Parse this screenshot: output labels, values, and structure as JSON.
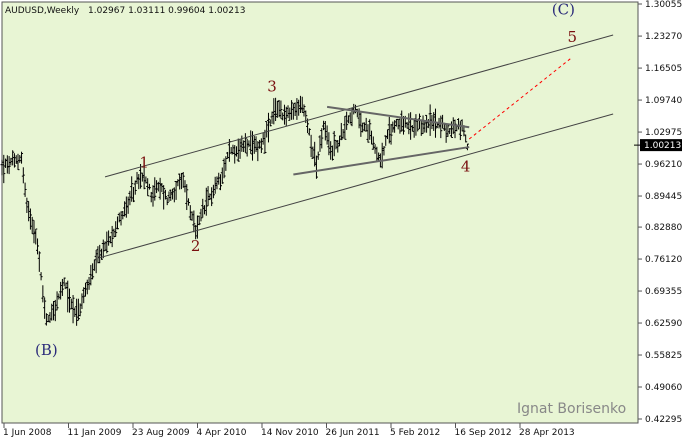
{
  "chart_data": {
    "type": "ohlc",
    "title": "AUDUSD,Weekly",
    "ohlc": "1.02967 1.03111 0.99604 1.00213",
    "watermark": "Ignat Borisenko",
    "x_tick_labels": [
      "1 Jun 2008",
      "11 Jan 2009",
      "23 Aug 2009",
      "4 Apr 2010",
      "14 Nov 2010",
      "26 Jun 2011",
      "5 Feb 2012",
      "16 Sep 2012",
      "28 Apr 2013"
    ],
    "y_tick_labels": [
      "1.30055",
      "1.23270",
      "1.16505",
      "1.09740",
      "1.02975",
      "0.96210",
      "0.89445",
      "0.82880",
      "0.76120",
      "0.69355",
      "0.62590",
      "0.55825",
      "0.49060",
      "0.42295"
    ],
    "ylim": [
      0.42295,
      1.30055
    ],
    "current_price": "1.00213",
    "colors": {
      "background": "#e8f5d4",
      "bars": "#000000",
      "channel": "#444444",
      "triangle": "#666666",
      "projection": "#ff0000",
      "wave_labels": "#7a1010",
      "corrective_labels": "#2b2b7a",
      "price_marker": "#000000",
      "watermark": "#888888"
    },
    "wave_labels": [
      {
        "label": "1",
        "date": "2009-11-15",
        "price": 0.955
      },
      {
        "label": "2",
        "date": "2010-06-06",
        "price": 0.778
      },
      {
        "label": "3",
        "date": "2011-04-03",
        "price": 1.115
      },
      {
        "label": "4",
        "date": "2013-05-05",
        "price": 0.946
      },
      {
        "label": "5",
        "date": "2014-06-29",
        "price": 1.22
      },
      {
        "label": "(B)",
        "date": "2008-10-26",
        "price": 0.558
      },
      {
        "label": "(C)",
        "date": "2014-05-25",
        "price": 1.278
      }
    ],
    "lines": [
      {
        "name": "channel-upper",
        "from": {
          "date": "2009-06-14",
          "price": 0.935
        },
        "to": {
          "date": "2014-12-07",
          "price": 1.235
        }
      },
      {
        "name": "channel-lower",
        "from": {
          "date": "2009-05-17",
          "price": 0.763
        },
        "to": {
          "date": "2014-12-07",
          "price": 1.068
        }
      },
      {
        "name": "triangle-upper",
        "from": {
          "date": "2011-11-06",
          "price": 1.083
        },
        "to": {
          "date": "2013-05-19",
          "price": 1.04
        }
      },
      {
        "name": "triangle-lower",
        "from": {
          "date": "2011-06-26",
          "price": 0.94
        },
        "to": {
          "date": "2013-05-19",
          "price": 0.998
        }
      },
      {
        "name": "projection",
        "from": {
          "date": "2013-05-19",
          "price": 1.015
        },
        "to": {
          "date": "2014-06-29",
          "price": 1.188
        }
      }
    ],
    "series": [
      {
        "date": "2008-05-04",
        "price": 0.955
      },
      {
        "date": "2008-07-20",
        "price": 0.975
      },
      {
        "date": "2008-08-10",
        "price": 0.875
      },
      {
        "date": "2008-09-14",
        "price": 0.815
      },
      {
        "date": "2008-10-12",
        "price": 0.69
      },
      {
        "date": "2008-10-26",
        "price": 0.63
      },
      {
        "date": "2008-11-30",
        "price": 0.66
      },
      {
        "date": "2009-01-04",
        "price": 0.71
      },
      {
        "date": "2009-02-01",
        "price": 0.665
      },
      {
        "date": "2009-03-01",
        "price": 0.645
      },
      {
        "date": "2009-04-05",
        "price": 0.705
      },
      {
        "date": "2009-05-17",
        "price": 0.76
      },
      {
        "date": "2009-06-28",
        "price": 0.8
      },
      {
        "date": "2009-08-02",
        "price": 0.84
      },
      {
        "date": "2009-09-13",
        "price": 0.875
      },
      {
        "date": "2009-10-18",
        "price": 0.925
      },
      {
        "date": "2009-11-15",
        "price": 0.933
      },
      {
        "date": "2009-12-13",
        "price": 0.9
      },
      {
        "date": "2010-01-17",
        "price": 0.915
      },
      {
        "date": "2010-02-14",
        "price": 0.888
      },
      {
        "date": "2010-03-21",
        "price": 0.91
      },
      {
        "date": "2010-04-18",
        "price": 0.93
      },
      {
        "date": "2010-05-09",
        "price": 0.88
      },
      {
        "date": "2010-06-06",
        "price": 0.815
      },
      {
        "date": "2010-07-04",
        "price": 0.86
      },
      {
        "date": "2010-08-08",
        "price": 0.9
      },
      {
        "date": "2010-09-12",
        "price": 0.935
      },
      {
        "date": "2010-10-17",
        "price": 0.99
      },
      {
        "date": "2010-11-21",
        "price": 0.99
      },
      {
        "date": "2010-12-19",
        "price": 1.005
      },
      {
        "date": "2011-01-16",
        "price": 0.995
      },
      {
        "date": "2011-02-20",
        "price": 1.005
      },
      {
        "date": "2011-03-27",
        "price": 1.045
      },
      {
        "date": "2011-04-24",
        "price": 1.085
      },
      {
        "date": "2011-05-22",
        "price": 1.065
      },
      {
        "date": "2011-06-26",
        "price": 1.07
      },
      {
        "date": "2011-07-31",
        "price": 1.09
      },
      {
        "date": "2011-08-21",
        "price": 1.045
      },
      {
        "date": "2011-09-25",
        "price": 0.96
      },
      {
        "date": "2011-10-23",
        "price": 1.04
      },
      {
        "date": "2011-11-20",
        "price": 0.99
      },
      {
        "date": "2011-12-25",
        "price": 1.01
      },
      {
        "date": "2012-01-22",
        "price": 1.055
      },
      {
        "date": "2012-02-26",
        "price": 1.075
      },
      {
        "date": "2012-03-25",
        "price": 1.04
      },
      {
        "date": "2012-04-22",
        "price": 1.035
      },
      {
        "date": "2012-05-20",
        "price": 0.985
      },
      {
        "date": "2012-06-03",
        "price": 0.97
      },
      {
        "date": "2012-07-01",
        "price": 1.02
      },
      {
        "date": "2012-08-05",
        "price": 1.05
      },
      {
        "date": "2012-09-09",
        "price": 1.045
      },
      {
        "date": "2012-10-14",
        "price": 1.035
      },
      {
        "date": "2012-11-18",
        "price": 1.045
      },
      {
        "date": "2012-12-23",
        "price": 1.05
      },
      {
        "date": "2013-01-20",
        "price": 1.05
      },
      {
        "date": "2013-02-24",
        "price": 1.03
      },
      {
        "date": "2013-03-24",
        "price": 1.04
      },
      {
        "date": "2013-04-21",
        "price": 1.045
      },
      {
        "date": "2013-05-12",
        "price": 1.002
      }
    ]
  }
}
